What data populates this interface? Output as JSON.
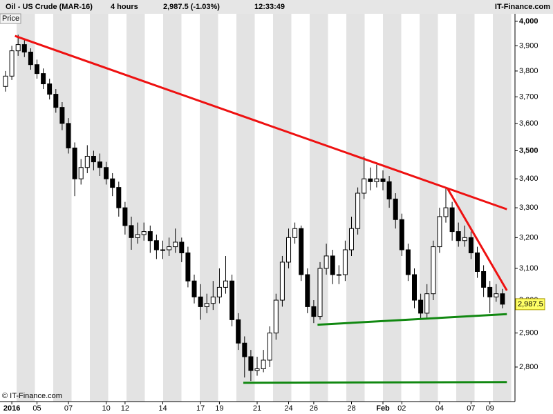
{
  "chart_data": {
    "type": "candlestick",
    "symbol": "Oil - US Crude (MAR-16)",
    "interval": "4 hours",
    "last": "2,987.5 (-1.03%)",
    "time": "12:33:49",
    "brand": "IT-Finance.com",
    "axis_title": "Price",
    "footer": "© IT-Finance.com",
    "log_scale": true,
    "ylim": [
      2702,
      4031
    ],
    "yticks": [
      {
        "value": 4000,
        "label": "4,000"
      },
      {
        "value": 3900,
        "label": "3,900"
      },
      {
        "value": 3800,
        "label": "3,800"
      },
      {
        "value": 3700,
        "label": "3,700"
      },
      {
        "value": 3600,
        "label": "3,600"
      },
      {
        "value": 3500,
        "label": "3,500"
      },
      {
        "value": 3400,
        "label": "3,400"
      },
      {
        "value": 3300,
        "label": "3,300"
      },
      {
        "value": 3200,
        "label": "3,200"
      },
      {
        "value": 3100,
        "label": "3,100"
      },
      {
        "value": 3000,
        "label": "3,000"
      },
      {
        "value": 2900,
        "label": "2,900"
      },
      {
        "value": 2800,
        "label": "2,800"
      }
    ],
    "current_price": {
      "value": 2987.5,
      "label": "2,987.5"
    },
    "categories": [
      null,
      "2016",
      null,
      null,
      null,
      "05",
      null,
      null,
      null,
      null,
      "07",
      null,
      null,
      null,
      null,
      null,
      "10",
      null,
      null,
      "12",
      null,
      null,
      null,
      null,
      null,
      "14",
      null,
      null,
      null,
      null,
      null,
      "17",
      null,
      null,
      "19",
      null,
      null,
      null,
      null,
      null,
      "21",
      null,
      null,
      null,
      null,
      "24",
      null,
      null,
      null,
      "26",
      null,
      null,
      null,
      null,
      null,
      "28",
      null,
      null,
      null,
      null,
      "Feb",
      null,
      null,
      "02",
      null,
      null,
      null,
      null,
      null,
      "04",
      null,
      null,
      null,
      null,
      "07",
      null,
      null,
      "09",
      null,
      null
    ],
    "open": [
      3740,
      3780,
      3880,
      3905,
      3875,
      3825,
      3790,
      3750,
      3710,
      3660,
      3600,
      3510,
      3400,
      3440,
      3480,
      3460,
      3440,
      3400,
      3370,
      3300,
      3240,
      3200,
      3210,
      3220,
      3190,
      3160,
      3160,
      3170,
      3185,
      3150,
      3060,
      3010,
      2980,
      2990,
      3010,
      3040,
      3060,
      2940,
      2870,
      2830,
      2790,
      2795,
      2820,
      2900,
      3000,
      3120,
      3200,
      3230,
      3080,
      2980,
      2950,
      3100,
      3140,
      3080,
      3080,
      3160,
      3230,
      3350,
      3400,
      3390,
      3400,
      3390,
      3330,
      3260,
      3160,
      3080,
      3000,
      2960,
      3020,
      3170,
      3270,
      3300,
      3220,
      3190,
      3200,
      3150,
      3090,
      3040,
      3010,
      3020
    ],
    "high": [
      3800,
      3900,
      3945,
      3925,
      3890,
      3845,
      3810,
      3770,
      3730,
      3680,
      3620,
      3530,
      3470,
      3520,
      3500,
      3490,
      3460,
      3420,
      3390,
      3320,
      3270,
      3250,
      3250,
      3240,
      3210,
      3190,
      3200,
      3230,
      3200,
      3170,
      3080,
      3050,
      3020,
      3060,
      3100,
      3140,
      3080,
      2960,
      2890,
      2850,
      2830,
      2850,
      2920,
      3020,
      3140,
      3230,
      3250,
      3240,
      3100,
      3000,
      3120,
      3180,
      3160,
      3110,
      3190,
      3270,
      3370,
      3480,
      3440,
      3450,
      3430,
      3410,
      3350,
      3280,
      3180,
      3100,
      3020,
      3050,
      3190,
      3300,
      3370,
      3320,
      3250,
      3240,
      3220,
      3170,
      3110,
      3060,
      3050,
      3035
    ],
    "low": [
      3720,
      3765,
      3860,
      3855,
      3805,
      3770,
      3730,
      3690,
      3640,
      3575,
      3490,
      3340,
      3380,
      3420,
      3430,
      3410,
      3380,
      3340,
      3270,
      3210,
      3160,
      3180,
      3190,
      3150,
      3130,
      3130,
      3140,
      3150,
      3120,
      3040,
      2990,
      2940,
      2960,
      2970,
      2990,
      3020,
      2920,
      2850,
      2770,
      2760,
      2775,
      2785,
      2800,
      2880,
      2980,
      3100,
      3180,
      3060,
      2960,
      2930,
      2940,
      3080,
      3050,
      3050,
      3060,
      3140,
      3210,
      3330,
      3360,
      3370,
      3360,
      3300,
      3230,
      3140,
      3060,
      2975,
      2945,
      2945,
      3000,
      3150,
      3250,
      3190,
      3170,
      3170,
      3130,
      3070,
      3010,
      2960,
      2995,
      2975
    ],
    "close": [
      3780,
      3880,
      3905,
      3875,
      3825,
      3790,
      3750,
      3710,
      3660,
      3600,
      3510,
      3400,
      3440,
      3480,
      3460,
      3440,
      3400,
      3370,
      3300,
      3240,
      3200,
      3210,
      3220,
      3190,
      3160,
      3160,
      3170,
      3185,
      3150,
      3060,
      3010,
      2980,
      2990,
      3010,
      3040,
      3060,
      2940,
      2870,
      2830,
      2790,
      2795,
      2820,
      2900,
      3000,
      3120,
      3200,
      3230,
      3080,
      2980,
      2950,
      3100,
      3140,
      3080,
      3080,
      3160,
      3230,
      3350,
      3400,
      3390,
      3400,
      3390,
      3330,
      3260,
      3160,
      3080,
      3000,
      2960,
      3020,
      3170,
      3270,
      3300,
      3220,
      3190,
      3200,
      3150,
      3090,
      3040,
      3010,
      3020,
      2987.5
    ],
    "trendlines": [
      {
        "color": "#ee1111",
        "points": [
          [
            1.5,
            3940
          ],
          [
            79.7,
            3295
          ]
        ]
      },
      {
        "color": "#ee1111",
        "points": [
          [
            70.3,
            3365
          ],
          [
            79.7,
            3030
          ]
        ]
      },
      {
        "color": "#118811",
        "points": [
          [
            49.6,
            2925
          ],
          [
            79.7,
            2957
          ]
        ]
      },
      {
        "color": "#118811",
        "points": [
          [
            37.8,
            2755
          ],
          [
            79.7,
            2757
          ]
        ]
      }
    ]
  }
}
